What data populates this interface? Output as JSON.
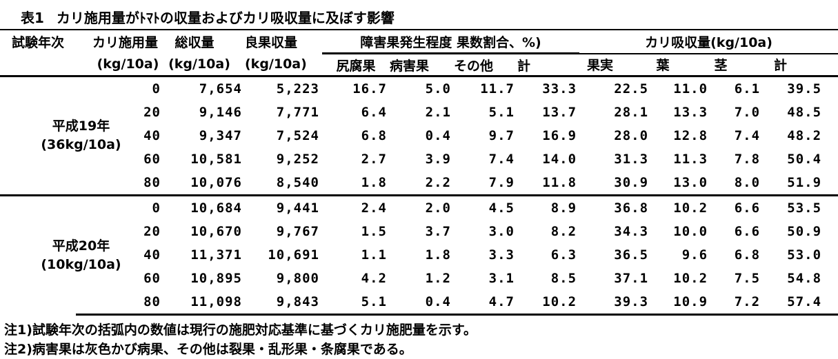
{
  "title": {
    "label": "表1",
    "text": "カリ施用量がﾄﾏﾄの収量およびカリ吸収量に及ぼす影響"
  },
  "header": {
    "year": "試験年次",
    "k_applied": "カリ施用量",
    "total_yield": "総収量",
    "good_yield": "良果収量",
    "unit": "(kg/10a)",
    "damaged_group": "障害果発生程度 果数割合、%)",
    "uptake_group": "カリ吸収量(kg/10a)",
    "damaged_cols": [
      "尻腐果",
      "病害果",
      "その他",
      "計"
    ],
    "uptake_cols": [
      "果実",
      "葉",
      "茎",
      "計"
    ]
  },
  "blocks": [
    {
      "year": "平成19年",
      "rate_note": "(36kg/10a)",
      "rows": [
        [
          "0",
          "7,654",
          "5,223",
          "16.7",
          "5.0",
          "11.7",
          "33.3",
          "22.5",
          "11.0",
          "6.1",
          "39.5"
        ],
        [
          "20",
          "9,146",
          "7,771",
          "6.4",
          "2.1",
          "5.1",
          "13.7",
          "28.1",
          "13.3",
          "7.0",
          "48.5"
        ],
        [
          "40",
          "9,347",
          "7,524",
          "6.8",
          "0.4",
          "9.7",
          "16.9",
          "28.0",
          "12.8",
          "7.4",
          "48.2"
        ],
        [
          "60",
          "10,581",
          "9,252",
          "2.7",
          "3.9",
          "7.4",
          "14.0",
          "31.3",
          "11.3",
          "7.8",
          "50.4"
        ],
        [
          "80",
          "10,076",
          "8,540",
          "1.8",
          "2.2",
          "7.9",
          "11.8",
          "30.9",
          "13.0",
          "8.0",
          "51.9"
        ]
      ]
    },
    {
      "year": "平成20年",
      "rate_note": "(10kg/10a)",
      "rows": [
        [
          "0",
          "10,684",
          "9,441",
          "2.4",
          "2.0",
          "4.5",
          "8.9",
          "36.8",
          "10.2",
          "6.6",
          "53.5"
        ],
        [
          "20",
          "10,670",
          "9,767",
          "1.5",
          "3.7",
          "3.0",
          "8.2",
          "34.3",
          "10.0",
          "6.6",
          "50.9"
        ],
        [
          "40",
          "11,371",
          "10,691",
          "1.1",
          "1.8",
          "3.3",
          "6.3",
          "36.5",
          "9.6",
          "6.8",
          "53.0"
        ],
        [
          "60",
          "10,895",
          "9,800",
          "4.2",
          "1.2",
          "3.1",
          "8.5",
          "37.1",
          "10.2",
          "7.5",
          "54.8"
        ],
        [
          "80",
          "11,098",
          "9,843",
          "5.1",
          "0.4",
          "4.7",
          "10.2",
          "39.3",
          "10.9",
          "7.2",
          "57.4"
        ]
      ]
    }
  ],
  "notes": [
    "注1)試験年次の括弧内の数値は現行の施肥対応基準に基づくカリ施肥量を示す。",
    "注2)病害果は灰色かび病果、その他は裂果・乱形果・条腐果である。"
  ]
}
